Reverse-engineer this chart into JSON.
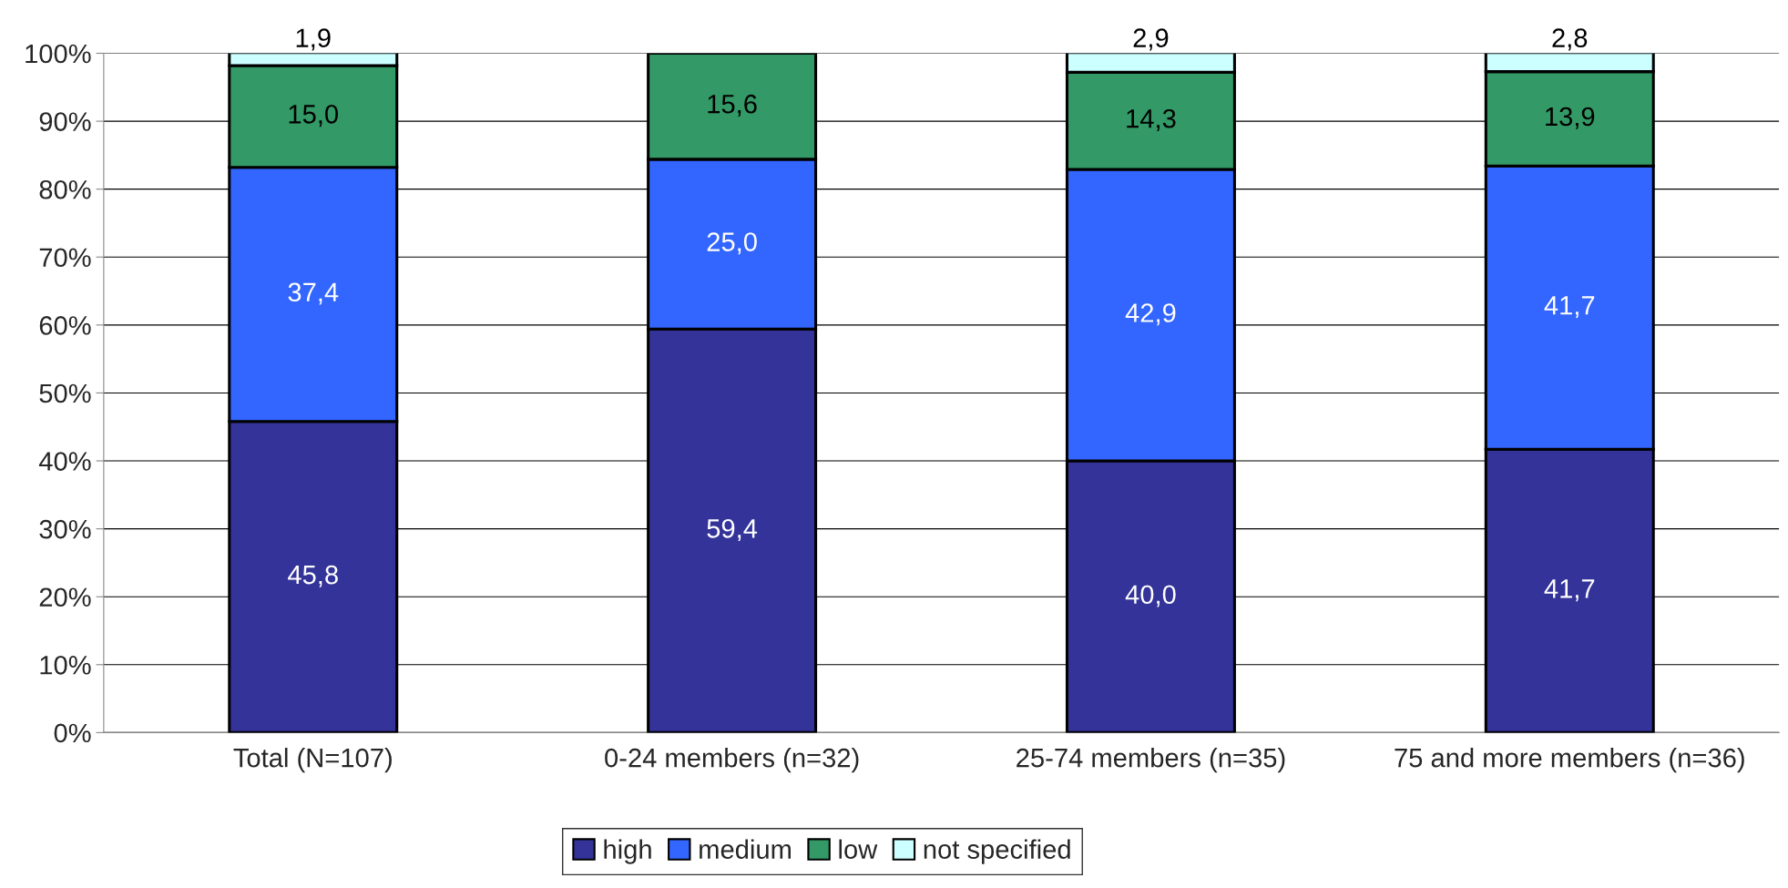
{
  "chart_data": {
    "type": "bar",
    "stacked": true,
    "categories": [
      "Total (N=107)",
      "0-24 members (n=32)",
      "25-74 members (n=35)",
      "75 and more members (n=36)"
    ],
    "series": [
      {
        "name": "high",
        "color": "#333399",
        "values": [
          45.8,
          59.4,
          40.0,
          41.7
        ],
        "value_labels": [
          "45,8",
          "59,4",
          "40,0",
          "41,7"
        ]
      },
      {
        "name": "medium",
        "color": "#3366ff",
        "values": [
          37.4,
          25.0,
          42.9,
          41.7
        ],
        "value_labels": [
          "37,4",
          "25,0",
          "42,9",
          "41,7"
        ]
      },
      {
        "name": "low",
        "color": "#339966",
        "values": [
          15.0,
          15.6,
          14.3,
          13.9
        ],
        "value_labels": [
          "15,0",
          "15,6",
          "14,3",
          "13,9"
        ]
      },
      {
        "name": "not specified",
        "color": "#ccffff",
        "values": [
          1.9,
          null,
          2.9,
          2.8
        ],
        "value_labels": [
          "1,9",
          null,
          "2,9",
          "2,8"
        ]
      }
    ],
    "ylim": [
      0,
      100
    ],
    "yticks": [
      {
        "value": 0,
        "label": "0%"
      },
      {
        "value": 10,
        "label": "10%"
      },
      {
        "value": 20,
        "label": "20%"
      },
      {
        "value": 30,
        "label": "30%"
      },
      {
        "value": 40,
        "label": "40%"
      },
      {
        "value": 50,
        "label": "50%"
      },
      {
        "value": 60,
        "label": "60%"
      },
      {
        "value": 70,
        "label": "70%"
      },
      {
        "value": 80,
        "label": "80%"
      },
      {
        "value": 90,
        "label": "90%"
      },
      {
        "value": 100,
        "label": "100%"
      }
    ],
    "grid": "y",
    "legend": "bottom"
  }
}
